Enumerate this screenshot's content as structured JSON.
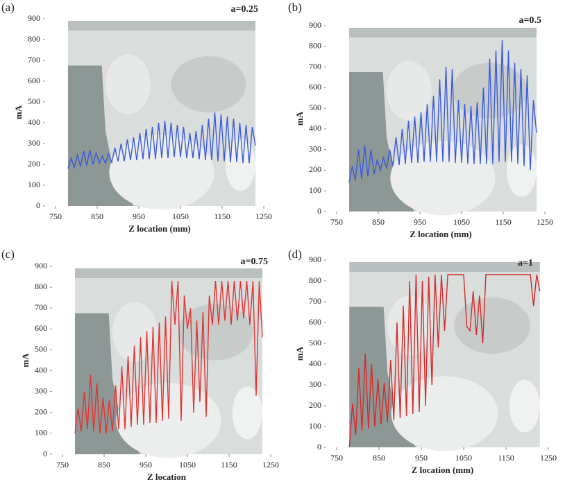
{
  "chart_data": [
    {
      "type": "line",
      "panel_label": "(a)",
      "annotation": "a=0.25",
      "x_label": "Z location (mm)",
      "y_label": "mA",
      "xlim": [
        750,
        1250
      ],
      "xticks": [
        750,
        850,
        950,
        1050,
        1150,
        1250
      ],
      "ylim": [
        0,
        900
      ],
      "yticks": [
        0,
        100,
        200,
        300,
        400,
        500,
        600,
        700,
        800,
        900
      ],
      "x": [
        780,
        787.5,
        795,
        802.5,
        810,
        817.5,
        825,
        832.5,
        840,
        847.5,
        855,
        862.5,
        870,
        877.5,
        885,
        892.5,
        900,
        907.5,
        915,
        922.5,
        930,
        937.5,
        945,
        952.5,
        960,
        967.5,
        975,
        982.5,
        990,
        997.5,
        1005,
        1012.5,
        1020,
        1027.5,
        1035,
        1042.5,
        1050,
        1057.5,
        1065,
        1072.5,
        1080,
        1087.5,
        1095,
        1102.5,
        1110,
        1117.5,
        1125,
        1132.5,
        1140,
        1147.5,
        1155,
        1162.5,
        1170,
        1177.5,
        1185,
        1192.5,
        1200,
        1207.5,
        1215,
        1222.5,
        1230
      ],
      "series": [
        {
          "color": "#3a5ad8",
          "values": [
            180,
            230,
            185,
            245,
            190,
            265,
            195,
            270,
            200,
            255,
            205,
            240,
            205,
            250,
            210,
            280,
            215,
            300,
            215,
            320,
            220,
            330,
            220,
            350,
            225,
            370,
            225,
            380,
            225,
            400,
            230,
            410,
            230,
            400,
            235,
            390,
            235,
            380,
            230,
            350,
            230,
            360,
            225,
            390,
            220,
            420,
            220,
            450,
            215,
            440,
            215,
            430,
            210,
            420,
            210,
            400,
            205,
            390,
            205,
            380,
            290
          ]
        }
      ]
    },
    {
      "type": "line",
      "panel_label": "(b)",
      "annotation": "a=0.5",
      "x_label": "Z location (mm)",
      "y_label": "mA",
      "xlim": [
        750,
        1250
      ],
      "xticks": [
        750,
        850,
        950,
        1050,
        1150,
        1250
      ],
      "ylim": [
        0,
        900
      ],
      "yticks": [
        0,
        100,
        200,
        300,
        400,
        500,
        600,
        700,
        800,
        900
      ],
      "x": [
        780,
        787.5,
        795,
        802.5,
        810,
        817.5,
        825,
        832.5,
        840,
        847.5,
        855,
        862.5,
        870,
        877.5,
        885,
        892.5,
        900,
        907.5,
        915,
        922.5,
        930,
        937.5,
        945,
        952.5,
        960,
        967.5,
        975,
        982.5,
        990,
        997.5,
        1005,
        1012.5,
        1020,
        1027.5,
        1035,
        1042.5,
        1050,
        1057.5,
        1065,
        1072.5,
        1080,
        1087.5,
        1095,
        1102.5,
        1110,
        1117.5,
        1125,
        1132.5,
        1140,
        1147.5,
        1155,
        1162.5,
        1170,
        1177.5,
        1185,
        1192.5,
        1200,
        1207.5,
        1215,
        1222.5,
        1230
      ],
      "series": [
        {
          "color": "#3a5ad8",
          "values": [
            140,
            220,
            150,
            300,
            160,
            320,
            170,
            300,
            180,
            250,
            200,
            260,
            210,
            300,
            220,
            360,
            225,
            400,
            230,
            440,
            235,
            460,
            235,
            480,
            240,
            520,
            240,
            560,
            240,
            640,
            240,
            700,
            240,
            690,
            235,
            540,
            235,
            520,
            230,
            510,
            230,
            530,
            230,
            600,
            230,
            740,
            230,
            780,
            240,
            830,
            240,
            780,
            240,
            720,
            230,
            690,
            220,
            660,
            200,
            540,
            380
          ]
        }
      ]
    },
    {
      "type": "line",
      "panel_label": "(c)",
      "annotation": "a=0.75",
      "x_label": "Z location",
      "y_label": "mA",
      "xlim": [
        750,
        1250
      ],
      "xticks": [
        750,
        850,
        950,
        1050,
        1150,
        1250
      ],
      "ylim": [
        0,
        900
      ],
      "yticks": [
        0,
        100,
        200,
        300,
        400,
        500,
        600,
        700,
        800,
        900
      ],
      "x": [
        780,
        787.5,
        795,
        802.5,
        810,
        817.5,
        825,
        832.5,
        840,
        847.5,
        855,
        862.5,
        870,
        877.5,
        885,
        892.5,
        900,
        907.5,
        915,
        922.5,
        930,
        937.5,
        945,
        952.5,
        960,
        967.5,
        975,
        982.5,
        990,
        997.5,
        1005,
        1012.5,
        1020,
        1027.5,
        1035,
        1042.5,
        1050,
        1057.5,
        1065,
        1072.5,
        1080,
        1087.5,
        1095,
        1102.5,
        1110,
        1117.5,
        1125,
        1132.5,
        1140,
        1147.5,
        1155,
        1162.5,
        1170,
        1177.5,
        1185,
        1192.5,
        1200,
        1207.5,
        1215,
        1222.5,
        1230
      ],
      "series": [
        {
          "color": "#e03434",
          "values": [
            100,
            220,
            110,
            300,
            120,
            380,
            110,
            340,
            100,
            270,
            100,
            260,
            110,
            330,
            120,
            420,
            120,
            470,
            130,
            520,
            140,
            560,
            140,
            590,
            150,
            610,
            150,
            630,
            160,
            660,
            170,
            830,
            620,
            830,
            160,
            760,
            600,
            700,
            200,
            640,
            250,
            680,
            180,
            760,
            620,
            830,
            620,
            830,
            640,
            830,
            620,
            830,
            640,
            830,
            650,
            830,
            620,
            830,
            280,
            830,
            560
          ]
        }
      ]
    },
    {
      "type": "line",
      "panel_label": "(d)",
      "annotation": "a=1",
      "x_label": "Z location (mm)",
      "y_label": "mA",
      "xlim": [
        750,
        1250
      ],
      "xticks": [
        750,
        850,
        950,
        1050,
        1150,
        1250
      ],
      "ylim": [
        0,
        900
      ],
      "yticks": [
        0,
        100,
        200,
        300,
        400,
        500,
        600,
        700,
        800,
        900
      ],
      "x": [
        780,
        787.5,
        795,
        802.5,
        810,
        817.5,
        825,
        832.5,
        840,
        847.5,
        855,
        862.5,
        870,
        877.5,
        885,
        892.5,
        900,
        907.5,
        915,
        922.5,
        930,
        937.5,
        945,
        952.5,
        960,
        967.5,
        975,
        982.5,
        990,
        997.5,
        1005,
        1012.5,
        1020,
        1027.5,
        1035,
        1042.5,
        1050,
        1057.5,
        1065,
        1072.5,
        1080,
        1087.5,
        1095,
        1102.5,
        1110,
        1117.5,
        1125,
        1132.5,
        1140,
        1147.5,
        1155,
        1162.5,
        1170,
        1177.5,
        1185,
        1192.5,
        1200,
        1207.5,
        1215,
        1222.5,
        1230
      ],
      "series": [
        {
          "color": "#d42a2a",
          "values": [
            0,
            210,
            60,
            380,
            80,
            450,
            90,
            400,
            100,
            330,
            110,
            310,
            120,
            420,
            130,
            600,
            140,
            680,
            150,
            800,
            160,
            830,
            170,
            800,
            200,
            820,
            300,
            830,
            480,
            830,
            560,
            830,
            830,
            830,
            830,
            830,
            830,
            580,
            560,
            750,
            540,
            730,
            500,
            830,
            830,
            830,
            830,
            830,
            830,
            830,
            830,
            830,
            830,
            830,
            830,
            830,
            830,
            830,
            680,
            830,
            750
          ]
        }
      ]
    }
  ]
}
